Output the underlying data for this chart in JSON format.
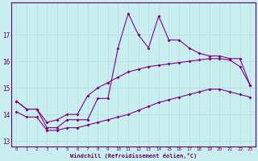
{
  "xlabel": "Windchill (Refroidissement éolien,°C)",
  "ylabel": "",
  "background_color": "#c8eef0",
  "grid_color": "#b8dfe0",
  "line_color": "#800080",
  "x": [
    0,
    1,
    2,
    3,
    4,
    5,
    6,
    7,
    8,
    9,
    10,
    11,
    12,
    13,
    14,
    15,
    16,
    17,
    18,
    19,
    20,
    21,
    22,
    23
  ],
  "y_main": [
    14.5,
    14.2,
    14.2,
    13.5,
    13.5,
    13.8,
    13.8,
    13.8,
    14.6,
    14.6,
    16.5,
    17.8,
    17.0,
    16.5,
    17.7,
    16.8,
    16.8,
    16.5,
    16.3,
    16.2,
    16.2,
    16.1,
    16.1,
    15.1
  ],
  "y_upper": [
    14.5,
    14.2,
    14.2,
    13.7,
    13.8,
    14.0,
    14.0,
    14.7,
    15.0,
    15.2,
    15.4,
    15.6,
    15.7,
    15.8,
    15.85,
    15.9,
    15.95,
    16.0,
    16.05,
    16.1,
    16.1,
    16.05,
    15.8,
    15.1
  ],
  "y_lower": [
    14.1,
    13.9,
    13.9,
    13.4,
    13.4,
    13.5,
    13.5,
    13.6,
    13.7,
    13.8,
    13.9,
    14.0,
    14.15,
    14.3,
    14.45,
    14.55,
    14.65,
    14.75,
    14.85,
    14.95,
    14.95,
    14.85,
    14.75,
    14.65
  ],
  "ylim": [
    12.8,
    18.2
  ],
  "xlim": [
    -0.5,
    23.5
  ],
  "yticks": [
    13,
    14,
    15,
    16,
    17
  ],
  "xticks": [
    0,
    1,
    2,
    3,
    4,
    5,
    6,
    7,
    8,
    9,
    10,
    11,
    12,
    13,
    14,
    15,
    16,
    17,
    18,
    19,
    20,
    21,
    22,
    23
  ],
  "markersize": 2.0,
  "linewidth": 0.8
}
